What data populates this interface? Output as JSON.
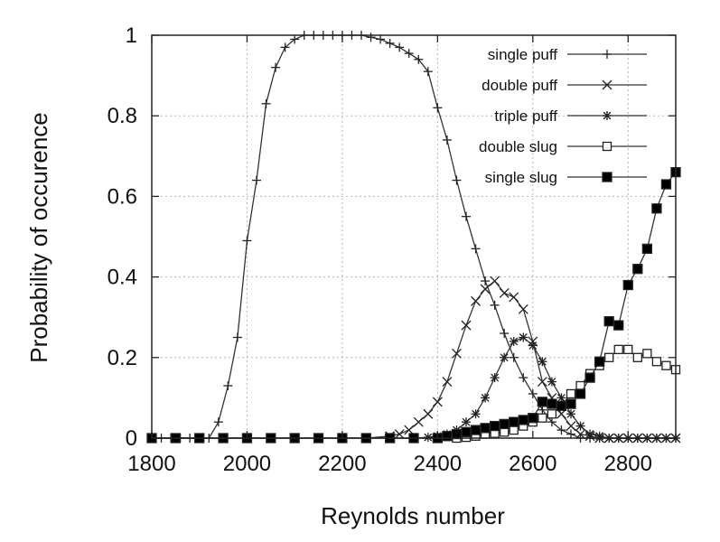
{
  "chart_data": {
    "type": "line",
    "title": "",
    "xlabel": "Reynolds number",
    "ylabel": "Probability of occurence",
    "xlim": [
      1800,
      2900
    ],
    "ylim": [
      0,
      1
    ],
    "xticks": [
      "1800",
      "2000",
      "2200",
      "2400",
      "2600",
      "2800"
    ],
    "yticks": [
      "0",
      "0.2",
      "0.4",
      "0.6",
      "0.8",
      "1"
    ],
    "grid": true,
    "legend_position": "top-right",
    "series": [
      {
        "name": "single puff",
        "marker": "plus",
        "x": [
          1800,
          1820,
          1840,
          1860,
          1880,
          1900,
          1920,
          1940,
          1960,
          1980,
          2000,
          2020,
          2040,
          2060,
          2080,
          2100,
          2120,
          2140,
          2160,
          2180,
          2200,
          2220,
          2240,
          2260,
          2280,
          2300,
          2320,
          2340,
          2360,
          2380,
          2400,
          2420,
          2440,
          2460,
          2480,
          2500,
          2520,
          2540,
          2560,
          2580,
          2600,
          2620,
          2640,
          2660,
          2680,
          2700,
          2720,
          2740,
          2760,
          2780,
          2800,
          2820,
          2840,
          2860,
          2880,
          2900
        ],
        "y": [
          0,
          0,
          0,
          0,
          0,
          0,
          0,
          0.04,
          0.13,
          0.25,
          0.49,
          0.64,
          0.83,
          0.92,
          0.97,
          0.99,
          1,
          1,
          1,
          1,
          1,
          1,
          1,
          0.995,
          0.99,
          0.98,
          0.97,
          0.955,
          0.94,
          0.91,
          0.82,
          0.74,
          0.64,
          0.55,
          0.47,
          0.39,
          0.33,
          0.26,
          0.2,
          0.15,
          0.11,
          0.07,
          0.04,
          0.02,
          0.01,
          0,
          0,
          0,
          0,
          0,
          0,
          0,
          0,
          0,
          0,
          0
        ]
      },
      {
        "name": "double puff",
        "marker": "cross",
        "x": [
          1800,
          1850,
          1900,
          1950,
          2000,
          2050,
          2100,
          2150,
          2200,
          2250,
          2300,
          2320,
          2340,
          2360,
          2380,
          2400,
          2420,
          2440,
          2460,
          2480,
          2500,
          2520,
          2540,
          2560,
          2580,
          2600,
          2620,
          2640,
          2660,
          2680,
          2700,
          2720,
          2740,
          2760,
          2780,
          2800,
          2820,
          2840,
          2860,
          2880,
          2900
        ],
        "y": [
          0,
          0,
          0,
          0,
          0,
          0,
          0,
          0,
          0,
          0,
          0.005,
          0.01,
          0.02,
          0.04,
          0.06,
          0.09,
          0.14,
          0.21,
          0.28,
          0.34,
          0.37,
          0.39,
          0.36,
          0.35,
          0.32,
          0.24,
          0.14,
          0.1,
          0.06,
          0.03,
          0.01,
          0.005,
          0,
          0,
          0,
          0,
          0,
          0,
          0,
          0,
          0
        ]
      },
      {
        "name": "triple puff",
        "marker": "star",
        "x": [
          1800,
          1850,
          1900,
          1950,
          2000,
          2050,
          2100,
          2150,
          2200,
          2250,
          2300,
          2350,
          2380,
          2400,
          2420,
          2440,
          2460,
          2480,
          2500,
          2520,
          2540,
          2560,
          2580,
          2600,
          2620,
          2640,
          2660,
          2680,
          2700,
          2720,
          2740,
          2760,
          2780,
          2800,
          2820,
          2840,
          2860,
          2880,
          2900
        ],
        "y": [
          0,
          0,
          0,
          0,
          0,
          0,
          0,
          0,
          0,
          0,
          0,
          0,
          0.002,
          0.005,
          0.01,
          0.02,
          0.04,
          0.06,
          0.1,
          0.15,
          0.2,
          0.24,
          0.25,
          0.23,
          0.19,
          0.14,
          0.1,
          0.06,
          0.03,
          0.01,
          0.005,
          0,
          0,
          0,
          0,
          0,
          0,
          0,
          0
        ]
      },
      {
        "name": "double slug",
        "marker": "open-square",
        "x": [
          1800,
          1850,
          1900,
          1950,
          2000,
          2050,
          2100,
          2150,
          2200,
          2250,
          2300,
          2350,
          2400,
          2440,
          2460,
          2480,
          2500,
          2520,
          2540,
          2560,
          2580,
          2600,
          2620,
          2640,
          2660,
          2680,
          2700,
          2720,
          2740,
          2760,
          2780,
          2800,
          2820,
          2840,
          2860,
          2880,
          2900
        ],
        "y": [
          0,
          0,
          0,
          0,
          0,
          0,
          0,
          0,
          0,
          0,
          0,
          0,
          0,
          0,
          0.002,
          0.005,
          0.01,
          0.012,
          0.015,
          0.02,
          0.03,
          0.04,
          0.05,
          0.06,
          0.08,
          0.11,
          0.13,
          0.16,
          0.18,
          0.2,
          0.22,
          0.22,
          0.2,
          0.21,
          0.19,
          0.18,
          0.17
        ]
      },
      {
        "name": "single slug",
        "marker": "filled-square",
        "x": [
          1800,
          1850,
          1900,
          1950,
          2000,
          2050,
          2100,
          2150,
          2200,
          2250,
          2300,
          2350,
          2400,
          2420,
          2440,
          2460,
          2480,
          2500,
          2520,
          2540,
          2560,
          2580,
          2600,
          2620,
          2640,
          2660,
          2680,
          2700,
          2720,
          2740,
          2760,
          2780,
          2800,
          2820,
          2840,
          2860,
          2880,
          2900
        ],
        "y": [
          0,
          0,
          0,
          0,
          0,
          0,
          0,
          0,
          0,
          0,
          0,
          0,
          0,
          0.005,
          0.01,
          0.015,
          0.02,
          0.025,
          0.03,
          0.035,
          0.04,
          0.045,
          0.05,
          0.09,
          0.085,
          0.08,
          0.085,
          0.11,
          0.15,
          0.19,
          0.29,
          0.28,
          0.38,
          0.42,
          0.47,
          0.57,
          0.63,
          0.66
        ]
      }
    ]
  }
}
